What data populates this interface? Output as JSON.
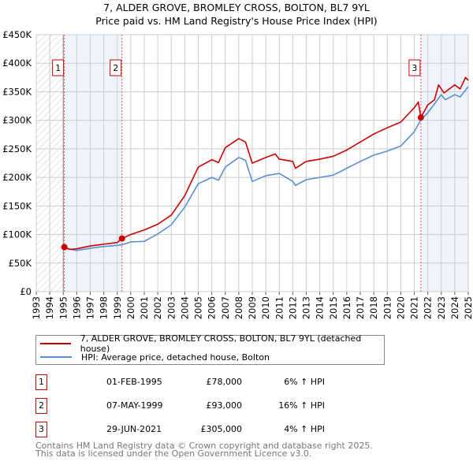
{
  "chart_data": {
    "type": "line",
    "title": "7, ALDER GROVE, BROMLEY CROSS, BOLTON, BL7 9YL",
    "subtitle": "Price paid vs. HM Land Registry's House Price Index (HPI)",
    "xlim": [
      1993,
      2025
    ],
    "ylim": [
      0,
      450000
    ],
    "x_ticks": [
      "1993",
      "1994",
      "1995",
      "1996",
      "1997",
      "1998",
      "1999",
      "2000",
      "2001",
      "2002",
      "2003",
      "2004",
      "2005",
      "2006",
      "2007",
      "2008",
      "2009",
      "2010",
      "2011",
      "2012",
      "2013",
      "2014",
      "2015",
      "2016",
      "2017",
      "2018",
      "2019",
      "2020",
      "2021",
      "2022",
      "2023",
      "2024",
      "2025"
    ],
    "y_ticks": [
      {
        "value": 0,
        "label": "£0"
      },
      {
        "value": 50000,
        "label": "£50K"
      },
      {
        "value": 100000,
        "label": "£100K"
      },
      {
        "value": 150000,
        "label": "£150K"
      },
      {
        "value": 200000,
        "label": "£200K"
      },
      {
        "value": 250000,
        "label": "£250K"
      },
      {
        "value": 300000,
        "label": "£300K"
      },
      {
        "value": 350000,
        "label": "£350K"
      },
      {
        "value": 400000,
        "label": "£400K"
      },
      {
        "value": 450000,
        "label": "£450K"
      }
    ],
    "grid": true,
    "hatched_range": [
      1993,
      1995.0
    ],
    "shaded_ranges": [
      [
        1995.08,
        1999.35
      ],
      [
        2021.49,
        2025
      ]
    ],
    "series": [
      {
        "name": "7, ALDER GROVE, BROMLEY CROSS, BOLTON, BL7 9YL (detached house)",
        "color": "#cc0000",
        "x": [
          1995.08,
          1995.5,
          1996,
          1997,
          1998,
          1999,
          1999.35,
          2000,
          2001,
          2002,
          2003,
          2004,
          2005,
          2006,
          2006.5,
          2007,
          2008,
          2008.5,
          2009,
          2010,
          2010.7,
          2011,
          2012,
          2012.2,
          2013,
          2014,
          2015,
          2016,
          2017,
          2018,
          2019,
          2020,
          2021,
          2021.3,
          2021.49,
          2022,
          2022.5,
          2022.8,
          2023.2,
          2024,
          2024.4,
          2024.8,
          2025
        ],
        "y": [
          78000,
          74000,
          75000,
          80000,
          83000,
          86000,
          93000,
          100000,
          108000,
          118000,
          134000,
          168000,
          218000,
          231000,
          226000,
          252000,
          268000,
          262000,
          225000,
          235000,
          241000,
          232000,
          228000,
          216000,
          228000,
          232000,
          237000,
          248000,
          262000,
          276000,
          287000,
          297000,
          322000,
          332000,
          305000,
          327000,
          336000,
          362000,
          348000,
          362000,
          355000,
          375000,
          370000
        ]
      },
      {
        "name": "HPI: Average price, detached house, Bolton",
        "color": "#5b8fd4",
        "x": [
          1995.08,
          1996,
          1997,
          1998,
          1999,
          1999.35,
          2000,
          2001,
          2002,
          2003,
          2004,
          2005,
          2006,
          2006.5,
          2007,
          2008,
          2008.5,
          2009,
          2010,
          2011,
          2012,
          2012.2,
          2013,
          2014,
          2015,
          2016,
          2017,
          2018,
          2019,
          2020,
          2021,
          2021.49,
          2022,
          2023,
          2023.3,
          2024,
          2024.4,
          2025
        ],
        "y": [
          76000,
          72000,
          76000,
          79000,
          81000,
          82000,
          87000,
          88000,
          101000,
          117000,
          148000,
          189000,
          200000,
          195000,
          218000,
          235000,
          230000,
          193000,
          203000,
          207000,
          193000,
          186000,
          196000,
          200000,
          204000,
          216000,
          228000,
          239000,
          246000,
          255000,
          280000,
          301000,
          313000,
          345000,
          336000,
          345000,
          341000,
          359000
        ]
      }
    ],
    "sales": [
      {
        "label": "1",
        "x": 1995.08,
        "y": 78000,
        "date": "01-FEB-1995",
        "price": "£78,000",
        "hpi": "6% ↑ HPI"
      },
      {
        "label": "2",
        "x": 1999.35,
        "y": 93000,
        "date": "07-MAY-1999",
        "price": "£93,000",
        "hpi": "16% ↑ HPI"
      },
      {
        "label": "3",
        "x": 2021.49,
        "y": 305000,
        "date": "29-JUN-2021",
        "price": "£305,000",
        "hpi": "4% ↑ HPI"
      }
    ],
    "legend_placement": "bottom"
  },
  "footer": {
    "line1": "Contains HM Land Registry data © Crown copyright and database right 2025.",
    "line2": "This data is licensed under the Open Government Licence v3.0."
  }
}
